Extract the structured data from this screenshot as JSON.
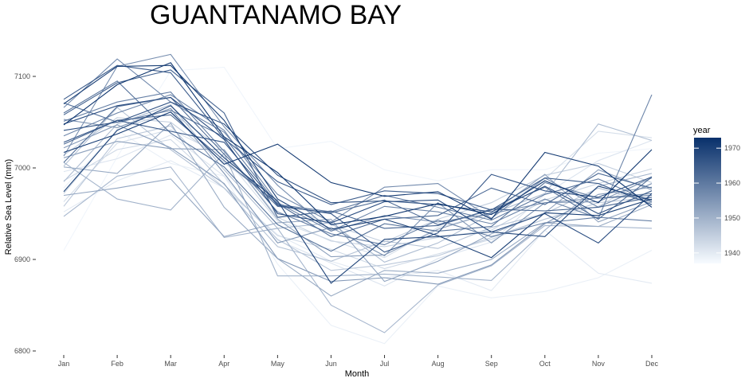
{
  "chart_data": {
    "type": "line",
    "title": "GUANTANAMO BAY",
    "xlabel": "Month",
    "ylabel": "Relative Sea Level (mm)",
    "categories": [
      "Jan",
      "Feb",
      "Mar",
      "Apr",
      "May",
      "Jun",
      "Jul",
      "Aug",
      "Sep",
      "Oct",
      "Nov",
      "Dec"
    ],
    "ylim": [
      6800,
      7140
    ],
    "yticks": [
      6800,
      6900,
      7000,
      7100
    ],
    "grid": false,
    "legend": {
      "title": "year",
      "position": "right",
      "range": [
        1937,
        1973
      ],
      "ticks": [
        1940,
        1950,
        1960,
        1970
      ],
      "color_low": "#f7fbff",
      "color_high": "#08306b"
    },
    "series": [
      {
        "year": 1938,
        "values": [
          6910,
          7012,
          7106,
          7110,
          7021,
          7029,
          6998,
          6986,
          6998,
          6998,
          7016,
          7021
        ]
      },
      {
        "year": 1939,
        "values": [
          6978,
          7041,
          7005,
          6991,
          6895,
          6828,
          6808,
          6871,
          6858,
          6865,
          6880,
          6910
        ]
      },
      {
        "year": 1940,
        "values": [
          6952,
          6986,
          7008,
          6978,
          6927,
          6898,
          6880,
          6888,
          6866,
          6932,
          6885,
          6874
        ]
      },
      {
        "year": 1941,
        "values": [
          6996,
          7010,
          7036,
          6991,
          6921,
          6896,
          6871,
          6901,
          6919,
          6971,
          7008,
          7030
        ]
      },
      {
        "year": 1942,
        "values": [
          6963,
          7027,
          7042,
          7013,
          6942,
          6921,
          6902,
          6935,
          6950,
          6988,
          7040,
          7033
        ]
      },
      {
        "year": 1943,
        "values": [
          6986,
          7020,
          7031,
          6978,
          6926,
          6911,
          6890,
          6906,
          6922,
          6944,
          6958,
          6991
        ]
      },
      {
        "year": 1944,
        "values": [
          6972,
          7042,
          7061,
          7019,
          6946,
          6920,
          6914,
          6924,
          6932,
          6965,
          6983,
          6999
        ]
      },
      {
        "year": 1945,
        "values": [
          7014,
          7055,
          7050,
          7006,
          6962,
          6938,
          6919,
          6944,
          6962,
          6992,
          7005,
          6984
        ]
      },
      {
        "year": 1946,
        "values": [
          6958,
          7032,
          7046,
          6982,
          6922,
          6888,
          6894,
          6904,
          6924,
          6944,
          6962,
          6968
        ]
      },
      {
        "year": 1947,
        "values": [
          7002,
          7066,
          7020,
          6978,
          6914,
          6898,
          6920,
          6912,
          6935,
          6950,
          6978,
          6962
        ]
      },
      {
        "year": 1948,
        "values": [
          6985,
          7048,
          7069,
          6998,
          6934,
          6940,
          6897,
          6918,
          6950,
          6972,
          7048,
          7030
        ]
      },
      {
        "year": 1949,
        "values": [
          6947,
          6991,
          7001,
          6924,
          6934,
          6850,
          6820,
          6872,
          6893,
          6937,
          6936,
          6934
        ]
      },
      {
        "year": 1950,
        "values": [
          7006,
          6966,
          6954,
          7016,
          6882,
          6882,
          6884,
          6881,
          6877,
          6932,
          6980,
          6994
        ]
      },
      {
        "year": 1951,
        "values": [
          7001,
          6994,
          7049,
          6957,
          6901,
          6860,
          6888,
          6885,
          6900,
          6940,
          6936,
          6960
        ]
      },
      {
        "year": 1952,
        "values": [
          6970,
          6978,
          6988,
          6925,
          6940,
          6944,
          6876,
          6898,
          6928,
          6951,
          6998,
          6976
        ]
      },
      {
        "year": 1953,
        "values": [
          7011,
          7029,
          7021,
          7020,
          6944,
          6903,
          6905,
          6933,
          6951,
          6993,
          6941,
          6963
        ]
      },
      {
        "year": 1954,
        "values": [
          7022,
          7047,
          7022,
          6983,
          6901,
          6876,
          6880,
          6873,
          6894,
          6939,
          6971,
          6979
        ]
      },
      {
        "year": 1955,
        "values": [
          7053,
          7044,
          7065,
          6994,
          6918,
          6935,
          6904,
          6962,
          6918,
          6962,
          6963,
          6989
        ]
      },
      {
        "year": 1956,
        "values": [
          7013,
          7111,
          7124,
          7045,
          6981,
          6931,
          6948,
          6941,
          6950,
          6962,
          6967,
          6972
        ]
      },
      {
        "year": 1957,
        "values": [
          7066,
          7119,
          7072,
          7039,
          6971,
          6941,
          6979,
          6983,
          6945,
          6989,
          6957,
          6983
        ]
      },
      {
        "year": 1958,
        "values": [
          7035,
          7060,
          7080,
          7041,
          6962,
          6931,
          6958,
          6952,
          6939,
          6966,
          6945,
          7080
        ]
      },
      {
        "year": 1959,
        "values": [
          7051,
          7072,
          7083,
          7018,
          6952,
          6928,
          6916,
          6943,
          6925,
          6940,
          6946,
          6942
        ]
      },
      {
        "year": 1960,
        "values": [
          7071,
          7050,
          7063,
          7034,
          6960,
          6952,
          6970,
          6957,
          6943,
          6971,
          6988,
          6963
        ]
      },
      {
        "year": 1961,
        "values": [
          7060,
          7095,
          7038,
          7001,
          6938,
          6909,
          6939,
          6931,
          6936,
          6984,
          6967,
          6970
        ]
      },
      {
        "year": 1962,
        "values": [
          7006,
          7067,
          7077,
          7015,
          6958,
          6951,
          6965,
          6938,
          6954,
          6979,
          6944,
          6990
        ]
      },
      {
        "year": 1963,
        "values": [
          7026,
          7052,
          7058,
          7008,
          6961,
          6925,
          6944,
          6948,
          6978,
          6960,
          6994,
          6978
        ]
      },
      {
        "year": 1964,
        "values": [
          7058,
          7093,
          7107,
          7060,
          6946,
          6953,
          6934,
          6937,
          6955,
          6953,
          6957,
          6968
        ]
      },
      {
        "year": 1965,
        "values": [
          7075,
          7112,
          7104,
          7032,
          6985,
          6960,
          6975,
          6972,
          6954,
          6989,
          6983,
          6960
        ]
      },
      {
        "year": 1966,
        "values": [
          7028,
          7052,
          7040,
          7028,
          6959,
          6950,
          6908,
          6929,
          6993,
          6975,
          6968,
          6990
        ]
      },
      {
        "year": 1967,
        "values": [
          7041,
          7050,
          7072,
          7048,
          6992,
          6962,
          6964,
          6960,
          6952,
          6980,
          6950,
          6975
        ]
      },
      {
        "year": 1968,
        "values": [
          7048,
          7068,
          7077,
          7031,
          6950,
          6940,
          6963,
          6965,
          6930,
          6950,
          6918,
          6972
        ]
      },
      {
        "year": 1969,
        "values": [
          6974,
          7041,
          7068,
          7011,
          6964,
          6874,
          6922,
          6925,
          6930,
          6925,
          6980,
          6965
        ]
      },
      {
        "year": 1970,
        "values": [
          7070,
          7111,
          7112,
          7052,
          6966,
          6933,
          6944,
          6926,
          6902,
          6951,
          6948,
          6966
        ]
      },
      {
        "year": 1971,
        "values": [
          7017,
          7037,
          7061,
          7004,
          7026,
          6984,
          6969,
          6974,
          6944,
          7017,
          7002,
          6957
        ]
      },
      {
        "year": 1972,
        "values": [
          7047,
          7091,
          7115,
          7034,
          6995,
          6938,
          6947,
          6961,
          6949,
          6986,
          6962,
          7020
        ]
      }
    ]
  }
}
